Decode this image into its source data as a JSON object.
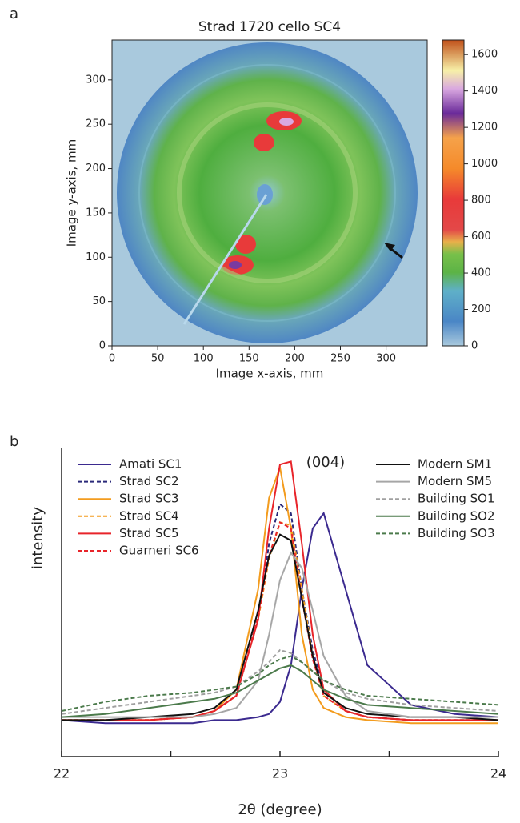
{
  "chart_data": [
    {
      "type": "heatmap",
      "panel_label": "a",
      "title": "Strad 1720 cello SC4",
      "xlabel": "Image x-axis, mm",
      "ylabel": "Image y-axis, mm",
      "xlim": [
        0,
        345
      ],
      "ylim": [
        0,
        345
      ],
      "xticks": [
        0,
        50,
        100,
        150,
        200,
        250,
        300
      ],
      "yticks": [
        0,
        50,
        100,
        150,
        200,
        250,
        300
      ],
      "colorbar_lim": [
        0,
        1680
      ],
      "colorbar_ticks": [
        0,
        200,
        400,
        600,
        800,
        1000,
        1200,
        1400,
        1600
      ]
    },
    {
      "type": "line",
      "panel_label": "b",
      "xlabel": "2θ (degree)",
      "ylabel": "intensity",
      "annotation": "(004)",
      "xlim": [
        22,
        24
      ],
      "xticks": [
        22,
        23,
        24
      ],
      "xminorticks": [
        22.5,
        23.5
      ],
      "ylim": [
        0,
        100
      ],
      "x": [
        22.0,
        22.2,
        22.4,
        22.6,
        22.7,
        22.8,
        22.9,
        22.95,
        23.0,
        23.05,
        23.1,
        23.15,
        23.2,
        23.3,
        23.4,
        23.6,
        23.8,
        24.0
      ],
      "series": [
        {
          "name": "Amati SC1",
          "color": "#3b2a8f",
          "dash": false,
          "values": [
            12,
            11,
            11,
            11,
            12,
            12,
            13,
            14,
            18,
            30,
            55,
            75,
            80,
            55,
            30,
            17,
            14,
            13
          ]
        },
        {
          "name": "Strad SC2",
          "color": "#2b2a7a",
          "dash": true,
          "values": [
            12,
            12,
            12,
            13,
            15,
            20,
            45,
            70,
            83,
            80,
            55,
            35,
            22,
            15,
            13,
            12,
            12,
            12
          ]
        },
        {
          "name": "Strad SC3",
          "color": "#f39c1e",
          "dash": false,
          "values": [
            12,
            12,
            12,
            13,
            15,
            22,
            55,
            85,
            95,
            75,
            40,
            22,
            16,
            13,
            12,
            11,
            11,
            11
          ]
        },
        {
          "name": "Strad SC4",
          "color": "#f39c1e",
          "dash": true,
          "values": [
            12,
            12,
            12,
            13,
            15,
            20,
            45,
            65,
            77,
            76,
            55,
            33,
            20,
            15,
            13,
            12,
            12,
            12
          ]
        },
        {
          "name": "Strad SC5",
          "color": "#e8242a",
          "dash": false,
          "values": [
            12,
            12,
            12,
            13,
            15,
            20,
            45,
            75,
            96,
            97,
            70,
            40,
            22,
            15,
            13,
            12,
            12,
            12
          ]
        },
        {
          "name": "Guarneri SC6",
          "color": "#e8242a",
          "dash": true,
          "values": [
            12,
            12,
            12,
            13,
            15,
            20,
            46,
            66,
            77,
            75,
            52,
            32,
            20,
            15,
            13,
            12,
            12,
            12
          ]
        },
        {
          "name": "Modern SM1",
          "color": "#111111",
          "dash": false,
          "values": [
            12,
            12,
            13,
            14,
            16,
            22,
            48,
            66,
            73,
            71,
            52,
            33,
            21,
            16,
            14,
            13,
            13,
            12
          ]
        },
        {
          "name": "Modern SM5",
          "color": "#a6a6a6",
          "dash": false,
          "values": [
            13,
            13,
            13,
            13,
            14,
            16,
            25,
            40,
            58,
            67,
            62,
            48,
            33,
            20,
            15,
            13,
            13,
            13
          ]
        },
        {
          "name": "Building SO1",
          "color": "#a0a0a0",
          "dash": true,
          "values": [
            14,
            16,
            18,
            20,
            21,
            23,
            28,
            31,
            35,
            34,
            31,
            28,
            25,
            21,
            19,
            17,
            16,
            15
          ]
        },
        {
          "name": "Building SO2",
          "color": "#4b7a4b",
          "dash": false,
          "values": [
            13,
            14,
            16,
            18,
            19,
            21,
            25,
            27,
            29,
            30,
            28,
            25,
            22,
            19,
            17,
            16,
            15,
            14
          ]
        },
        {
          "name": "Building SO3",
          "color": "#4b7a4b",
          "dash": true,
          "values": [
            15,
            18,
            20,
            21,
            22,
            23,
            27,
            30,
            32,
            33,
            31,
            28,
            25,
            22,
            20,
            19,
            18,
            17
          ]
        }
      ]
    }
  ]
}
